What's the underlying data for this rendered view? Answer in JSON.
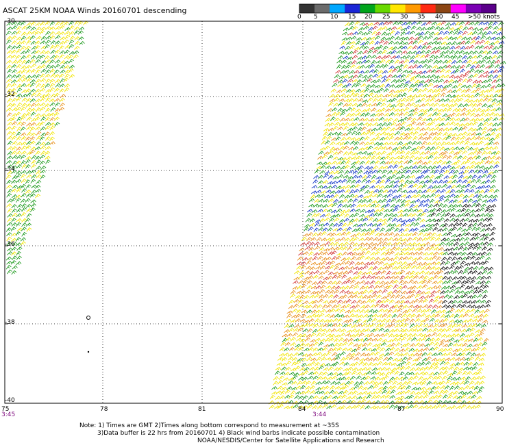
{
  "title": "ASCAT 25KM NOAA Winds 20160701 descending",
  "colorbar": {
    "labels": [
      "0",
      "5",
      "10",
      "15",
      "20",
      "25",
      "30",
      "35",
      "40",
      "45",
      ">50 knots"
    ],
    "colors": [
      "#333333",
      "#6b6b6b",
      "#00a7ff",
      "#1a26d6",
      "#00a51c",
      "#69d900",
      "#ffe600",
      "#ff9900",
      "#ff2a12",
      "#8b4513",
      "#ff00ff",
      "#7a00b3",
      "#5a008a"
    ]
  },
  "map": {
    "lat_labels": [
      "-30",
      "-32",
      "-34",
      "-36",
      "-38",
      "-40"
    ],
    "lon_labels": [
      "75",
      "78",
      "81",
      "84",
      "87",
      "90"
    ],
    "times": [
      "3:45",
      "3:44"
    ],
    "swaths": [
      {
        "id": "west",
        "lon_range": [
          75,
          77.3
        ],
        "lat_range": [
          -30,
          -36.8
        ]
      },
      {
        "id": "east",
        "lon_range": [
          83.5,
          90
        ],
        "lat_range": [
          -30,
          -40
        ]
      }
    ],
    "barb_colors": {
      "green": "#1e9a1e",
      "yellow": "#f1e400",
      "orange": "#e88f1d",
      "red": "#d23c3c",
      "blue": "#1538c8",
      "black": "#111111"
    }
  },
  "notes": [
    "Note: 1) Times are GMT 2)Times along bottom correspond to measurement at ~35S",
    "3)Data buffer is 22 hrs from 20160701 4) Black wind barbs indicate possible contamination",
    "NOAA/NESDIS/Center for Satellite Applications and Research"
  ]
}
